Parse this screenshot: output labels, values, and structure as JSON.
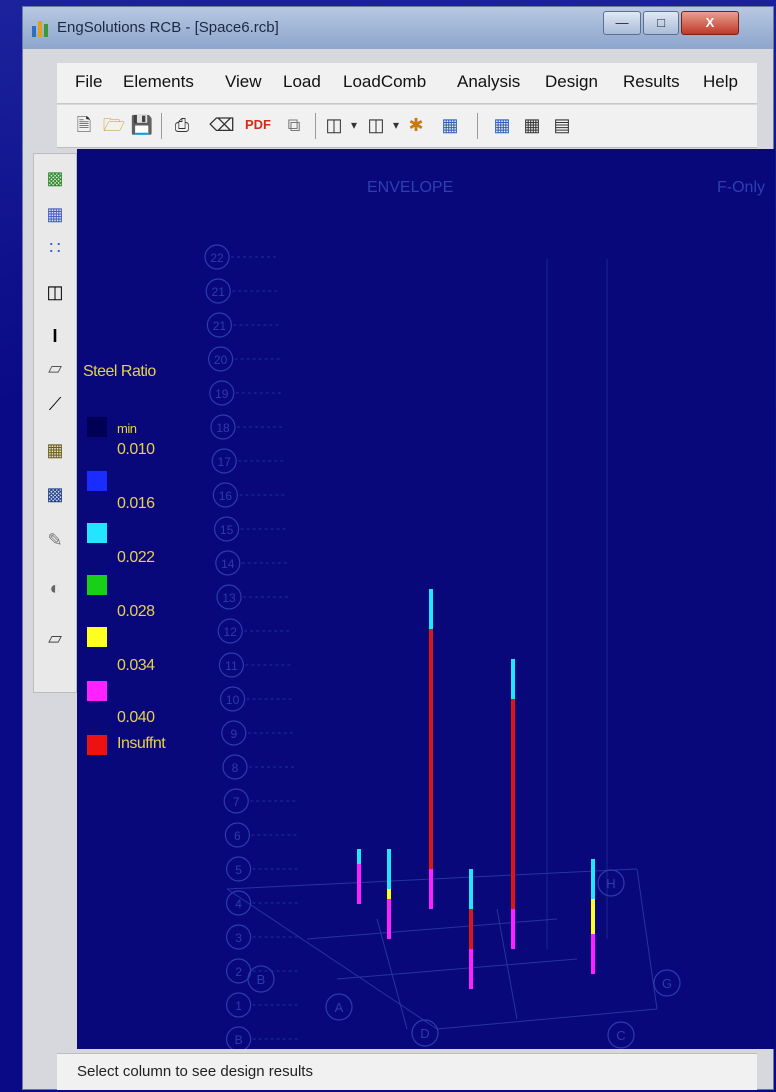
{
  "window": {
    "title": "EngSolutions RCB - [Space6.rcb]",
    "min_glyph": "—",
    "max_glyph": "□",
    "close_glyph": "X"
  },
  "menu": [
    "File",
    "Elements",
    "View",
    "Load",
    "LoadComb",
    "Analysis",
    "Design",
    "Results",
    "Help"
  ],
  "toolbar_icons": [
    "new-file-icon",
    "open-folder-icon",
    "save-icon",
    "print-icon",
    "eraser-icon",
    "pdf-icon",
    "copy-icon",
    "column-icon",
    "frame-icon",
    "run-icon",
    "grid-view-icon",
    "table-icon",
    "plan-icon",
    "elevation-icon"
  ],
  "toolbar_pdf_label": "PDF",
  "left_tools": [
    "floor-icon",
    "grid-icon",
    "points-icon",
    "frame-icon",
    "column-icon",
    "beam-icon",
    "line-icon",
    "wall-icon",
    "slab-icon",
    "pencil-icon",
    "section-icon",
    "plate-icon"
  ],
  "viewport": {
    "title": "ENVELOPE",
    "corner_label": "F-Only"
  },
  "legend": {
    "title": "Steel Ratio",
    "min_label": "min",
    "entries": [
      {
        "value": "0.010",
        "color": "#1a2cff"
      },
      {
        "value": "0.016",
        "color": "#22e6ff"
      },
      {
        "value": "0.022",
        "color": "#18d018"
      },
      {
        "value": "0.028",
        "color": "#ffff22"
      },
      {
        "value": "0.034",
        "color": "#ff22ff"
      },
      {
        "value": "0.040",
        "color": "#ee1111"
      }
    ],
    "insufficient_label": "Insuffnt",
    "min_color": "#000055"
  },
  "story_numbers": [
    "22",
    "21",
    "21",
    "20",
    "19",
    "18",
    "17",
    "16",
    "15",
    "14",
    "13",
    "12",
    "11",
    "10",
    "9",
    "8",
    "7",
    "6",
    "5",
    "4",
    "3",
    "2",
    "1",
    "B"
  ],
  "grid_labels": [
    "B",
    "A",
    "D",
    "C",
    "G",
    "H"
  ],
  "columns_semantic": "design-result-columns",
  "status": {
    "text": "Select column to see design results"
  }
}
